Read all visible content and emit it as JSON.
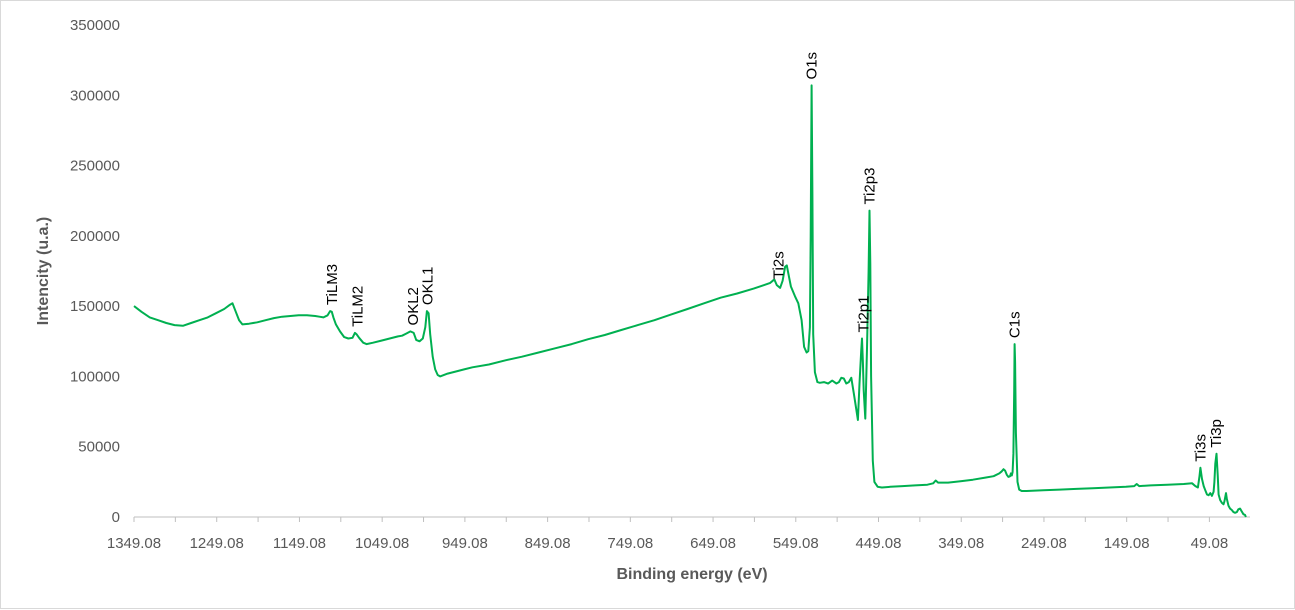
{
  "chart_data": {
    "type": "line",
    "xlabel": "Binding energy (eV)",
    "ylabel": "Intencity (u.a.)",
    "x_reversed": true,
    "xlim": [
      1349.08,
      0
    ],
    "ylim": [
      0,
      350000
    ],
    "x_ticks": [
      "1349.08",
      "1249.08",
      "1149.08",
      "1049.08",
      "949.08",
      "849.08",
      "749.08",
      "649.08",
      "549.08",
      "449.08",
      "349.08",
      "249.08",
      "149.08",
      "49.08"
    ],
    "y_ticks": [
      "0",
      "50000",
      "100000",
      "150000",
      "200000",
      "250000",
      "300000",
      "350000"
    ],
    "grid": false,
    "legend": "none",
    "line_color": "#00b050",
    "series": [
      {
        "points": [
          [
            1349.08,
            150000
          ],
          [
            1340,
            146000
          ],
          [
            1330,
            142000
          ],
          [
            1320,
            140000
          ],
          [
            1310,
            138000
          ],
          [
            1300,
            136500
          ],
          [
            1290,
            136000
          ],
          [
            1280,
            138000
          ],
          [
            1270,
            140000
          ],
          [
            1260,
            142000
          ],
          [
            1250,
            145000
          ],
          [
            1240,
            148000
          ],
          [
            1233,
            151000
          ],
          [
            1230,
            152000
          ],
          [
            1226,
            146000
          ],
          [
            1222,
            140000
          ],
          [
            1218,
            137000
          ],
          [
            1210,
            137500
          ],
          [
            1200,
            138500
          ],
          [
            1190,
            140000
          ],
          [
            1180,
            141500
          ],
          [
            1170,
            142500
          ],
          [
            1160,
            143000
          ],
          [
            1150,
            143500
          ],
          [
            1140,
            143500
          ],
          [
            1130,
            143000
          ],
          [
            1125,
            142500
          ],
          [
            1120,
            142000
          ],
          [
            1115,
            143500
          ],
          [
            1112,
            146500
          ],
          [
            1110,
            146000
          ],
          [
            1108,
            142000
          ],
          [
            1105,
            137000
          ],
          [
            1100,
            132000
          ],
          [
            1095,
            128000
          ],
          [
            1090,
            127000
          ],
          [
            1085,
            127500
          ],
          [
            1082,
            131000
          ],
          [
            1080,
            130000
          ],
          [
            1077,
            127500
          ],
          [
            1072,
            124000
          ],
          [
            1068,
            123000
          ],
          [
            1060,
            124000
          ],
          [
            1050,
            125500
          ],
          [
            1040,
            127000
          ],
          [
            1030,
            128500
          ],
          [
            1025,
            129000
          ],
          [
            1020,
            130500
          ],
          [
            1015,
            132000
          ],
          [
            1011,
            131000
          ],
          [
            1008,
            126000
          ],
          [
            1004,
            125000
          ],
          [
            1000,
            127000
          ],
          [
            997,
            135000
          ],
          [
            995,
            146500
          ],
          [
            993,
            145000
          ],
          [
            991,
            130000
          ],
          [
            988,
            114000
          ],
          [
            985,
            105000
          ],
          [
            982,
            101000
          ],
          [
            979,
            100000
          ],
          [
            970,
            102000
          ],
          [
            960,
            103500
          ],
          [
            950,
            105000
          ],
          [
            940,
            106500
          ],
          [
            920,
            108500
          ],
          [
            900,
            111500
          ],
          [
            880,
            114000
          ],
          [
            860,
            117000
          ],
          [
            840,
            120000
          ],
          [
            820,
            123000
          ],
          [
            800,
            126500
          ],
          [
            780,
            129500
          ],
          [
            760,
            133000
          ],
          [
            740,
            136500
          ],
          [
            720,
            140000
          ],
          [
            700,
            144000
          ],
          [
            680,
            148000
          ],
          [
            660,
            152000
          ],
          [
            640,
            156000
          ],
          [
            620,
            159000
          ],
          [
            600,
            162500
          ],
          [
            590,
            164500
          ],
          [
            580,
            166500
          ],
          [
            577,
            168000
          ],
          [
            575,
            169000
          ],
          [
            572,
            165000
          ],
          [
            568,
            163000
          ],
          [
            565,
            168000
          ],
          [
            562,
            178000
          ],
          [
            560,
            179000
          ],
          [
            558,
            173000
          ],
          [
            555,
            164000
          ],
          [
            550,
            157000
          ],
          [
            546,
            152000
          ],
          [
            542,
            140000
          ],
          [
            539,
            121000
          ],
          [
            536,
            117000
          ],
          [
            534,
            118000
          ],
          [
            532,
            135000
          ],
          [
            531,
            200000
          ],
          [
            530,
            307000
          ],
          [
            529,
            230000
          ],
          [
            528,
            130000
          ],
          [
            526,
            103000
          ],
          [
            523,
            96000
          ],
          [
            520,
            95500
          ],
          [
            515,
            96000
          ],
          [
            510,
            95000
          ],
          [
            505,
            97000
          ],
          [
            500,
            95000
          ],
          [
            497,
            96000
          ],
          [
            494,
            99000
          ],
          [
            491,
            98500
          ],
          [
            488,
            95000
          ],
          [
            485,
            96000
          ],
          [
            482,
            99000
          ],
          [
            479,
            88000
          ],
          [
            476,
            77000
          ],
          [
            474,
            69000
          ],
          [
            472,
            95000
          ],
          [
            470,
            118000
          ],
          [
            469,
            127000
          ],
          [
            468,
            110000
          ],
          [
            467,
            90000
          ],
          [
            465,
            70000
          ],
          [
            463,
            120000
          ],
          [
            461,
            175000
          ],
          [
            460,
            218000
          ],
          [
            459,
            180000
          ],
          [
            458,
            100000
          ],
          [
            456,
            40000
          ],
          [
            454,
            25000
          ],
          [
            450,
            21500
          ],
          [
            445,
            21000
          ],
          [
            435,
            21500
          ],
          [
            420,
            22000
          ],
          [
            405,
            22500
          ],
          [
            390,
            23000
          ],
          [
            383,
            24000
          ],
          [
            380,
            26000
          ],
          [
            377,
            24500
          ],
          [
            365,
            24500
          ],
          [
            350,
            25500
          ],
          [
            335,
            26500
          ],
          [
            320,
            28000
          ],
          [
            310,
            29000
          ],
          [
            303,
            31000
          ],
          [
            300,
            32500
          ],
          [
            298,
            34000
          ],
          [
            296,
            33000
          ],
          [
            294,
            30000
          ],
          [
            292,
            28500
          ],
          [
            290,
            29000
          ],
          [
            289,
            31000
          ],
          [
            288,
            29500
          ],
          [
            287,
            32000
          ],
          [
            286,
            45000
          ],
          [
            285,
            90000
          ],
          [
            284.6,
            123000
          ],
          [
            284,
            110000
          ],
          [
            283,
            60000
          ],
          [
            281,
            25000
          ],
          [
            279,
            19500
          ],
          [
            276,
            18500
          ],
          [
            270,
            18500
          ],
          [
            250,
            19000
          ],
          [
            230,
            19500
          ],
          [
            210,
            20000
          ],
          [
            190,
            20500
          ],
          [
            170,
            21000
          ],
          [
            150,
            21500
          ],
          [
            140,
            22000
          ],
          [
            137,
            23500
          ],
          [
            134,
            22000
          ],
          [
            120,
            22500
          ],
          [
            100,
            23000
          ],
          [
            80,
            23500
          ],
          [
            70,
            24000
          ],
          [
            66,
            22000
          ],
          [
            63,
            21000
          ],
          [
            61,
            29000
          ],
          [
            60,
            35000
          ],
          [
            58,
            27000
          ],
          [
            56,
            22000
          ],
          [
            54,
            19000
          ],
          [
            52,
            16000
          ],
          [
            50,
            15500
          ],
          [
            48,
            17000
          ],
          [
            46,
            15000
          ],
          [
            44,
            18000
          ],
          [
            43,
            25000
          ],
          [
            42,
            38000
          ],
          [
            40.5,
            45000
          ],
          [
            39,
            30000
          ],
          [
            38,
            16000
          ],
          [
            36,
            12000
          ],
          [
            34,
            10000
          ],
          [
            32,
            9000
          ],
          [
            31,
            11000
          ],
          [
            30,
            14000
          ],
          [
            29,
            17000
          ],
          [
            28,
            13000
          ],
          [
            26,
            8000
          ],
          [
            24,
            6000
          ],
          [
            22,
            5000
          ],
          [
            20,
            3500
          ],
          [
            18,
            3000
          ],
          [
            16,
            3500
          ],
          [
            14,
            5500
          ],
          [
            12,
            6000
          ],
          [
            10,
            4000
          ],
          [
            8,
            2000
          ],
          [
            6,
            1500
          ],
          [
            5,
            0
          ]
        ]
      }
    ],
    "annotations": [
      {
        "text": "TiLM3",
        "x": 1110
      },
      {
        "text": "TiLM2",
        "x": 1079
      },
      {
        "text": "OKL2",
        "x": 1012
      },
      {
        "text": "OKL1",
        "x": 994
      },
      {
        "text": "Ti2s",
        "x": 570
      },
      {
        "text": "O1s",
        "x": 530
      },
      {
        "text": "Ti2p1",
        "x": 467
      },
      {
        "text": "Ti2p3",
        "x": 460
      },
      {
        "text": "C1s",
        "x": 284.6
      },
      {
        "text": "Ti3s",
        "x": 60
      },
      {
        "text": "Ti3p",
        "x": 41
      }
    ]
  }
}
